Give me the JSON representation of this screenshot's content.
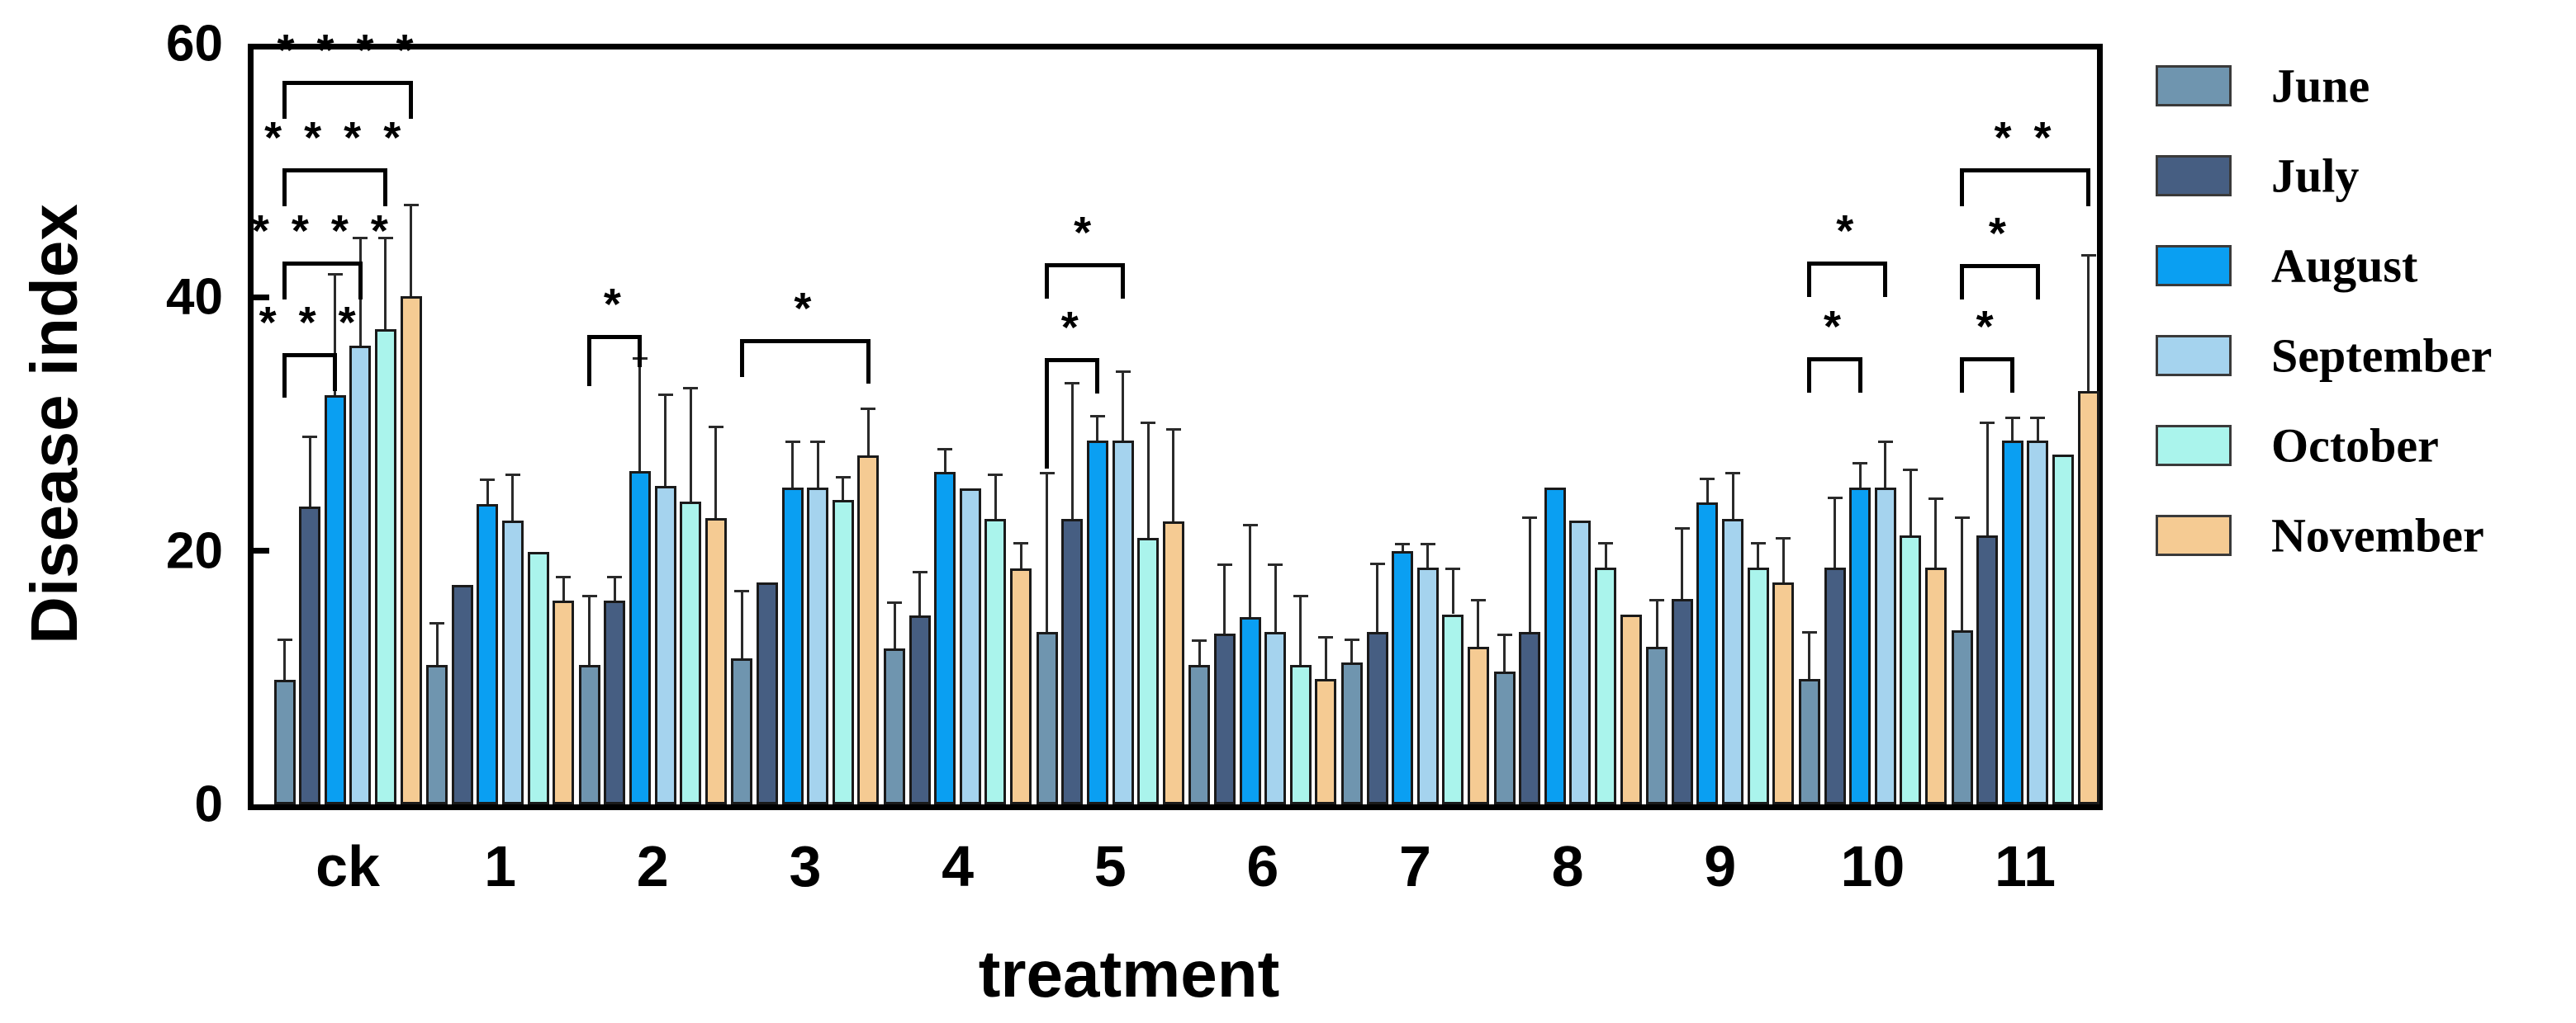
{
  "chart_data": {
    "type": "bar",
    "title": "",
    "xlabel": "treatment",
    "ylabel": "Disease index",
    "ylim": [
      0,
      60
    ],
    "yticks": [
      0,
      20,
      40,
      60
    ],
    "grid": false,
    "legend_position": "right",
    "axis_color": "#000000",
    "bar_border_color": "#1a1a1a",
    "error_bar_color": "#2a2a2a",
    "categories": [
      "ck",
      "1",
      "2",
      "3",
      "4",
      "5",
      "6",
      "7",
      "8",
      "9",
      "10",
      "11"
    ],
    "series": [
      {
        "name": "June",
        "color": "#6F95AF",
        "values": [
          9.8,
          11.0,
          11.0,
          11.5,
          12.3,
          13.6,
          11.0,
          11.2,
          10.5,
          12.4,
          9.9,
          13.7
        ],
        "errors": [
          3.2,
          3.3,
          5.4,
          5.3,
          3.6,
          12.5,
          1.9,
          1.8,
          2.9,
          3.7,
          3.7,
          8.9
        ]
      },
      {
        "name": "July",
        "color": "#465E82",
        "values": [
          23.5,
          17.3,
          16.1,
          17.5,
          14.9,
          22.5,
          13.5,
          13.6,
          13.6,
          16.2,
          18.7,
          21.2
        ],
        "errors": [
          5.5,
          0,
          1.8,
          0,
          3.4,
          10.7,
          5.4,
          5.4,
          9.0,
          5.6,
          5.5,
          8.9
        ]
      },
      {
        "name": "August",
        "color": "#0A9FF2",
        "values": [
          32.3,
          23.7,
          26.3,
          25.0,
          26.2,
          28.7,
          14.8,
          20.0,
          25.0,
          23.8,
          25.0,
          28.7
        ],
        "errors": [
          9.5,
          1.9,
          8.9,
          3.6,
          1.8,
          1.9,
          7.2,
          0.5,
          0,
          1.9,
          1.9,
          1.8
        ]
      },
      {
        "name": "September",
        "color": "#A5D3EE",
        "values": [
          36.2,
          22.4,
          25.1,
          25.0,
          24.9,
          28.7,
          13.6,
          18.7,
          22.4,
          22.5,
          25.0,
          28.7
        ],
        "errors": [
          8.5,
          3.6,
          7.2,
          3.6,
          0,
          5.4,
          5.3,
          1.8,
          0,
          3.6,
          3.6,
          1.8
        ]
      },
      {
        "name": "October",
        "color": "#AAF4EC",
        "values": [
          37.5,
          19.9,
          23.9,
          24.0,
          22.5,
          21.0,
          11.0,
          15.0,
          18.7,
          18.7,
          21.2,
          27.6
        ],
        "errors": [
          7.2,
          0,
          8.9,
          1.8,
          3.5,
          9.1,
          5.4,
          3.6,
          1.9,
          1.9,
          5.2,
          0
        ]
      },
      {
        "name": "November",
        "color": "#F5CB93",
        "values": [
          40.1,
          16.1,
          22.6,
          27.5,
          18.6,
          22.3,
          9.9,
          12.4,
          15.0,
          17.5,
          18.7,
          32.6
        ],
        "errors": [
          7.2,
          1.8,
          7.2,
          3.7,
          2.0,
          7.3,
          3.3,
          3.7,
          0,
          3.5,
          5.4,
          10.7
        ]
      }
    ],
    "significance_brackets": [
      {
        "category": "ck",
        "from_series": "June",
        "to_series": "August",
        "label": "***",
        "height": 35.6,
        "left_drop": 3.5,
        "right_drop": 3
      },
      {
        "category": "ck",
        "from_series": "June",
        "to_series": "September",
        "label": "****",
        "height": 42.8,
        "left_drop": 3,
        "right_drop": 3
      },
      {
        "category": "ck",
        "from_series": "June",
        "to_series": "October",
        "label": "****",
        "height": 50.2,
        "left_drop": 3,
        "right_drop": 3
      },
      {
        "category": "ck",
        "from_series": "June",
        "to_series": "November",
        "label": "****",
        "height": 57.1,
        "left_drop": 3,
        "right_drop": 3
      },
      {
        "category": "2",
        "from_series": "June",
        "to_series": "August",
        "label": "*",
        "height": 37.0,
        "left_drop": 4,
        "right_drop": 2.5
      },
      {
        "category": "3",
        "from_series": "June",
        "to_series": "November",
        "label": "*",
        "height": 36.7,
        "left_drop": 3,
        "right_drop": 3.5
      },
      {
        "category": "5",
        "from_series": "June",
        "to_series": "August",
        "label": "*",
        "height": 35.2,
        "left_drop": 8.7,
        "right_drop": 2.8
      },
      {
        "category": "5",
        "from_series": "June",
        "to_series": "September",
        "label": "*",
        "height": 42.7,
        "left_drop": 2.8,
        "right_drop": 2.8
      },
      {
        "category": "10",
        "from_series": "June",
        "to_series": "August",
        "label": "*",
        "height": 35.3,
        "left_drop": 2.8,
        "right_drop": 2.8
      },
      {
        "category": "10",
        "from_series": "June",
        "to_series": "September",
        "label": "*",
        "height": 42.8,
        "left_drop": 2.8,
        "right_drop": 2.8
      },
      {
        "category": "11",
        "from_series": "June",
        "to_series": "August",
        "label": "*",
        "height": 35.3,
        "left_drop": 2.8,
        "right_drop": 2.8
      },
      {
        "category": "11",
        "from_series": "June",
        "to_series": "September",
        "label": "*",
        "height": 42.6,
        "left_drop": 2.8,
        "right_drop": 2.8
      },
      {
        "category": "11",
        "from_series": "June",
        "to_series": "November",
        "label": "**",
        "height": 50.2,
        "left_drop": 3,
        "right_drop": 3
      }
    ]
  }
}
